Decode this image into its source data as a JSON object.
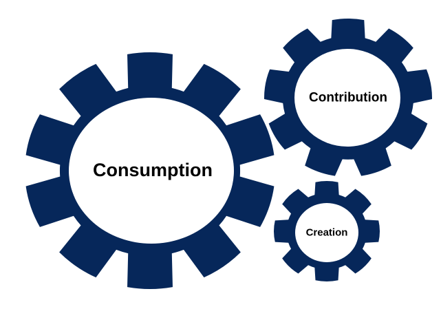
{
  "diagram": {
    "gear_color": "#06275a",
    "hub_color": "#ffffff",
    "label_color": "#000000",
    "gears": [
      {
        "id": "consumption",
        "label": "Consumption",
        "teeth": 10,
        "icon": "gear-icon"
      },
      {
        "id": "contribution",
        "label": "Contribution",
        "teeth": 9,
        "icon": "gear-icon"
      },
      {
        "id": "creation",
        "label": "Creation",
        "teeth": 8,
        "icon": "gear-icon"
      }
    ]
  }
}
